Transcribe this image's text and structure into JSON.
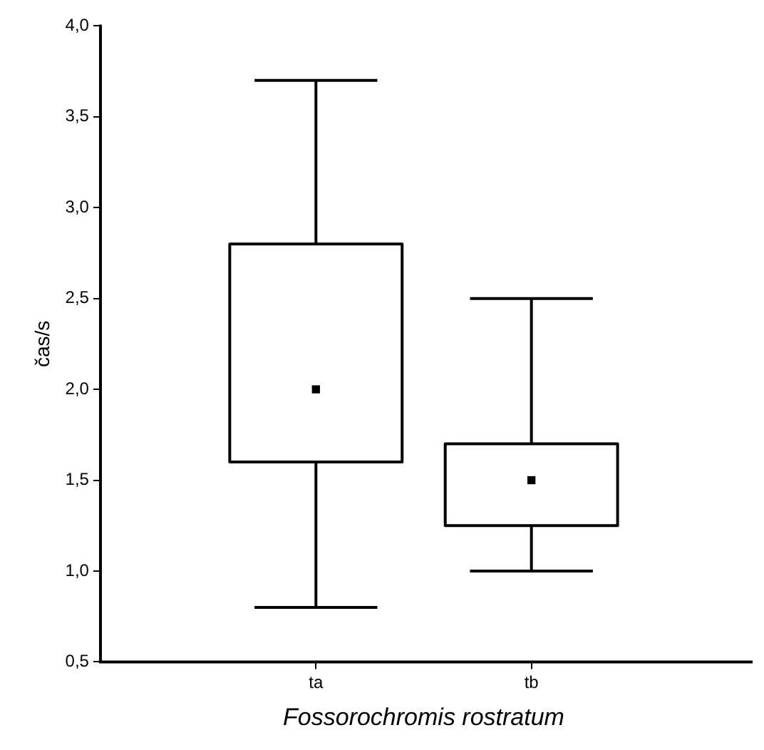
{
  "chart_data": {
    "type": "box",
    "xlabel": "Fossorochromis rostratum",
    "ylabel": "čas/s",
    "categories": [
      "ta",
      "tb"
    ],
    "boxes": [
      {
        "low": 0.8,
        "q1": 1.6,
        "median": 2.0,
        "q3": 2.8,
        "high": 3.7
      },
      {
        "low": 1.0,
        "q1": 1.25,
        "median": 1.5,
        "q3": 1.7,
        "high": 2.5
      }
    ],
    "ylim": [
      0.5,
      4.0
    ],
    "yticks": [
      {
        "value": 0.5,
        "label": "0,5"
      },
      {
        "value": 1.0,
        "label": "1,0"
      },
      {
        "value": 1.5,
        "label": "1,5"
      },
      {
        "value": 2.0,
        "label": "2,0"
      },
      {
        "value": 2.5,
        "label": "2,5"
      },
      {
        "value": 3.0,
        "label": "3,0"
      },
      {
        "value": 3.5,
        "label": "3,5"
      },
      {
        "value": 4.0,
        "label": "4,0"
      }
    ],
    "grid": false,
    "legend": false,
    "marker": "square"
  }
}
